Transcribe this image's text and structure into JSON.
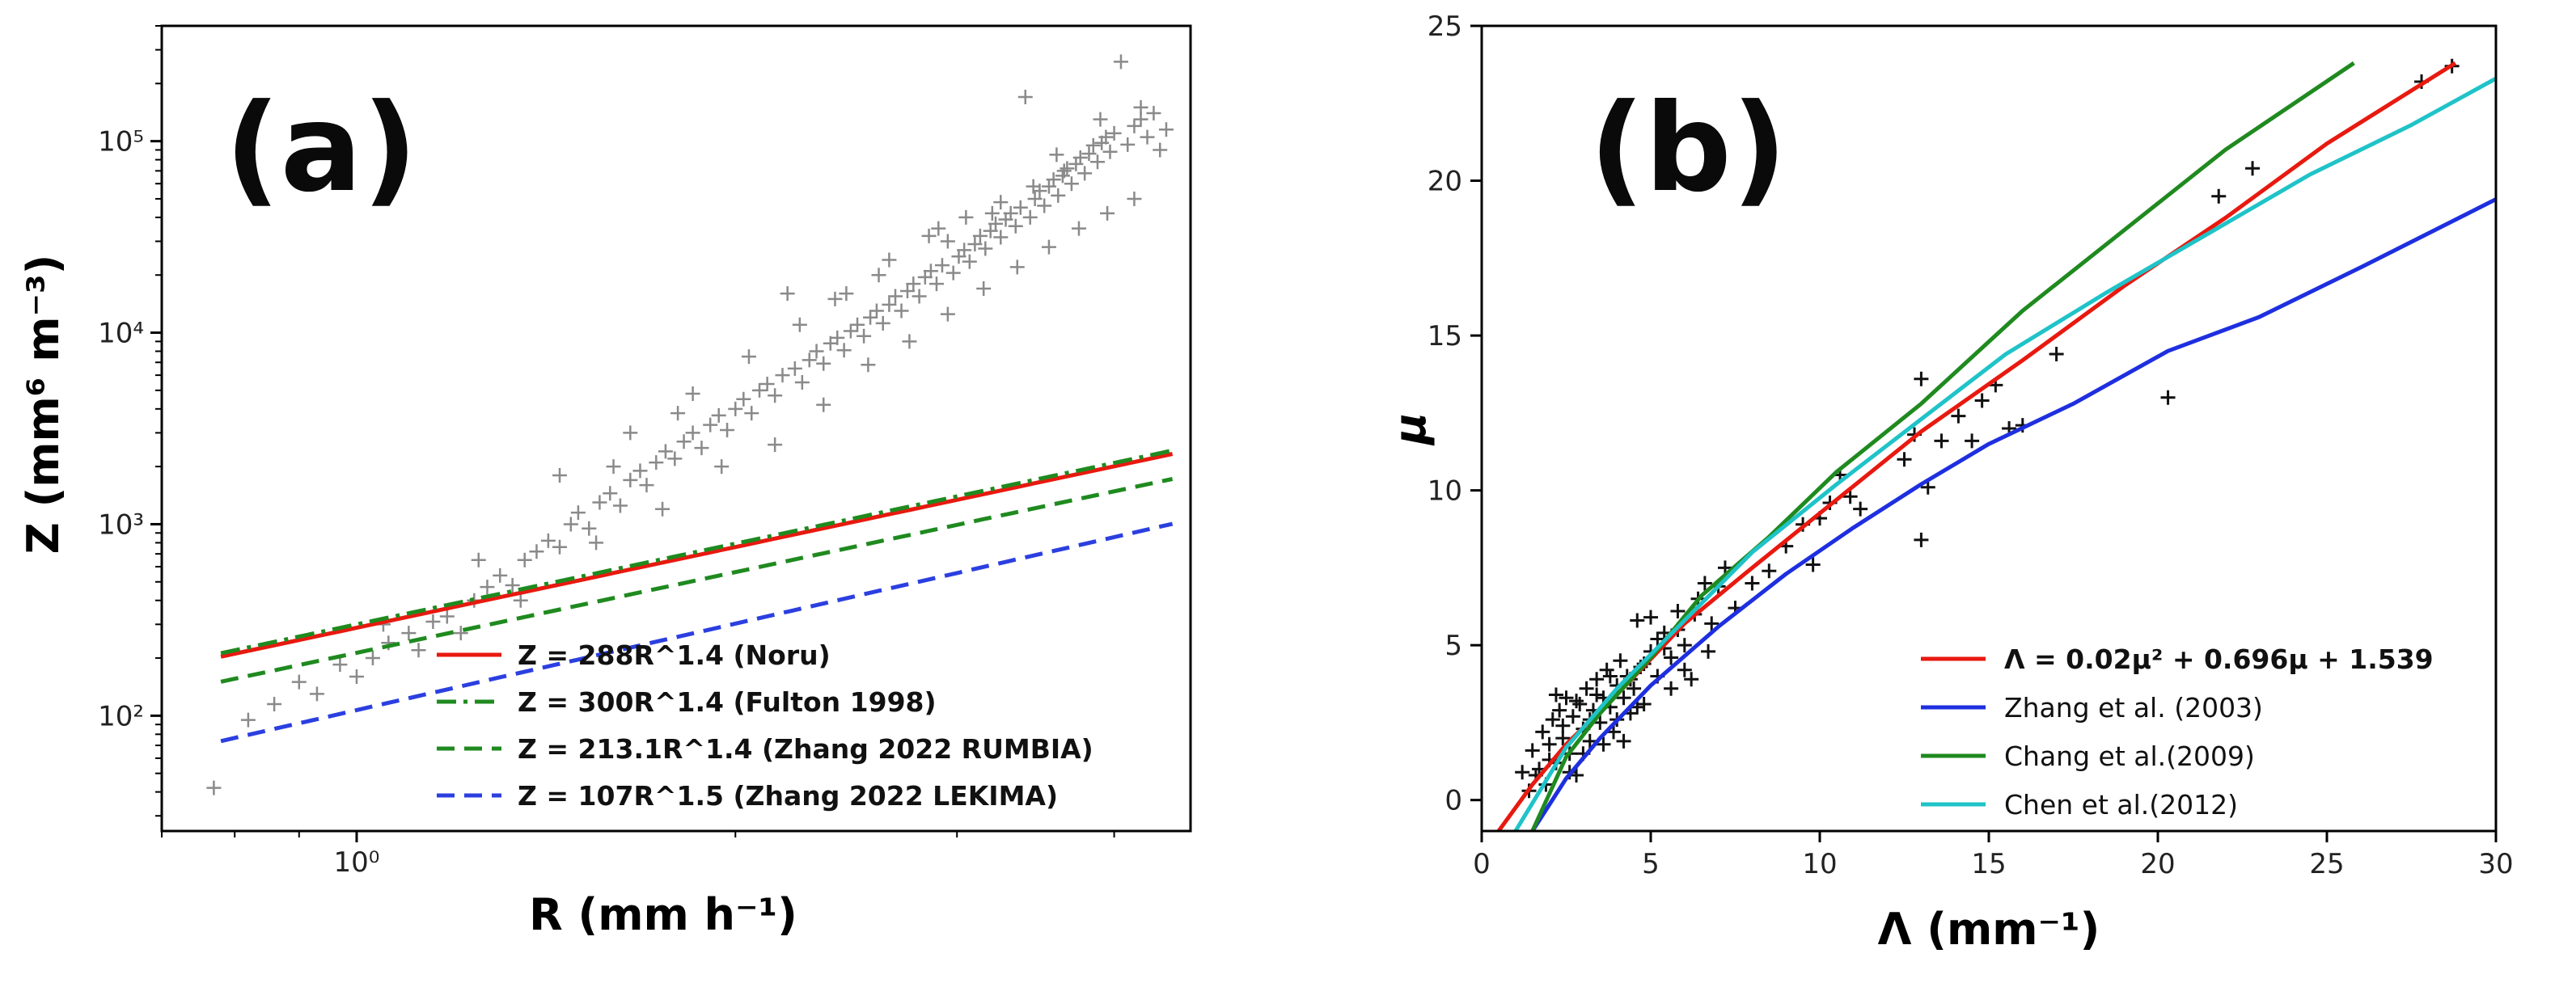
{
  "chart_data": [
    {
      "type": "scatter",
      "panel_label": "(a)",
      "xlabel": "R (mm h⁻¹)",
      "ylabel": "Z (mm⁶ m⁻³)",
      "xscale": "log",
      "yscale": "log",
      "xlim": [
        0.7,
        4.6
      ],
      "ylim": [
        25,
        400000
      ],
      "xticks": [
        {
          "value": 1,
          "label": "10⁰"
        }
      ],
      "yticks": [
        {
          "value": 100,
          "label": "10²"
        },
        {
          "value": 1000,
          "label": "10³"
        },
        {
          "value": 10000,
          "label": "10⁴"
        },
        {
          "value": 100000,
          "label": "10⁵"
        }
      ],
      "legend_position": "lower-right",
      "series": [
        {
          "name": "Z = 288R^1.4 (Noru)",
          "color": "#e8190f",
          "dash": "solid",
          "a": 288,
          "b": 1.4,
          "r_range": [
            0.78,
            4.45
          ]
        },
        {
          "name": "Z = 300R^1.4 (Fulton 1998)",
          "color": "#1f8a1f",
          "dash": "dashdot",
          "a": 300,
          "b": 1.4,
          "r_range": [
            0.78,
            4.45
          ]
        },
        {
          "name": "Z = 213.1R^1.4 (Zhang 2022 RUMBIA)",
          "color": "#1f8a1f",
          "dash": "dashed",
          "a": 213.1,
          "b": 1.4,
          "r_range": [
            0.78,
            4.45
          ]
        },
        {
          "name": "Z = 107R^1.5 (Zhang 2022 LEKIMA)",
          "color": "#2b3fe0",
          "dash": "dashed",
          "a": 107,
          "b": 1.5,
          "r_range": [
            0.78,
            4.45
          ]
        }
      ],
      "points": [
        [
          0.77,
          42
        ],
        [
          0.82,
          95
        ],
        [
          0.86,
          115
        ],
        [
          0.9,
          150
        ],
        [
          0.93,
          130
        ],
        [
          0.97,
          185
        ],
        [
          1.0,
          160
        ],
        [
          1.03,
          200
        ],
        [
          1.06,
          240
        ],
        [
          1.1,
          270
        ],
        [
          1.12,
          220
        ],
        [
          1.15,
          310
        ],
        [
          1.18,
          330
        ],
        [
          1.21,
          270
        ],
        [
          1.24,
          400
        ],
        [
          1.27,
          470
        ],
        [
          1.3,
          540
        ],
        [
          1.33,
          480
        ],
        [
          1.36,
          650
        ],
        [
          1.39,
          720
        ],
        [
          1.42,
          820
        ],
        [
          1.45,
          760
        ],
        [
          1.48,
          1000
        ],
        [
          1.5,
          1150
        ],
        [
          1.53,
          950
        ],
        [
          1.56,
          1300
        ],
        [
          1.59,
          1450
        ],
        [
          1.62,
          1250
        ],
        [
          1.65,
          1700
        ],
        [
          1.68,
          1900
        ],
        [
          1.7,
          1600
        ],
        [
          1.73,
          2100
        ],
        [
          1.76,
          2400
        ],
        [
          1.79,
          2200
        ],
        [
          1.82,
          2700
        ],
        [
          1.85,
          3000
        ],
        [
          1.88,
          2500
        ],
        [
          1.91,
          3300
        ],
        [
          1.94,
          3700
        ],
        [
          1.97,
          3100
        ],
        [
          2.0,
          4000
        ],
        [
          2.03,
          4500
        ],
        [
          2.06,
          3800
        ],
        [
          2.09,
          5000
        ],
        [
          2.12,
          5400
        ],
        [
          2.15,
          4700
        ],
        [
          2.18,
          6000
        ],
        [
          2.2,
          16000
        ],
        [
          2.23,
          6500
        ],
        [
          2.26,
          5500
        ],
        [
          2.29,
          7200
        ],
        [
          2.32,
          8000
        ],
        [
          2.35,
          6900
        ],
        [
          2.38,
          8800
        ],
        [
          2.41,
          9400
        ],
        [
          2.44,
          8100
        ],
        [
          2.47,
          10200
        ],
        [
          2.5,
          11000
        ],
        [
          2.53,
          9600
        ],
        [
          2.56,
          12000
        ],
        [
          2.59,
          13000
        ],
        [
          2.62,
          11200
        ],
        [
          2.65,
          14000
        ],
        [
          2.68,
          15500
        ],
        [
          2.71,
          13000
        ],
        [
          2.74,
          16500
        ],
        [
          2.77,
          18000
        ],
        [
          2.8,
          15500
        ],
        [
          2.83,
          19500
        ],
        [
          2.86,
          21000
        ],
        [
          2.89,
          18000
        ],
        [
          2.92,
          22500
        ],
        [
          2.95,
          30000
        ],
        [
          2.98,
          20500
        ],
        [
          3.01,
          25000
        ],
        [
          3.04,
          27000
        ],
        [
          3.07,
          23500
        ],
        [
          3.1,
          29000
        ],
        [
          3.13,
          32000
        ],
        [
          3.16,
          27500
        ],
        [
          3.19,
          34000
        ],
        [
          3.22,
          37000
        ],
        [
          3.25,
          31500
        ],
        [
          3.28,
          39000
        ],
        [
          3.31,
          42000
        ],
        [
          3.34,
          36000
        ],
        [
          3.37,
          45000
        ],
        [
          3.4,
          170000
        ],
        [
          3.43,
          40000
        ],
        [
          3.46,
          50000
        ],
        [
          3.49,
          55000
        ],
        [
          3.52,
          46000
        ],
        [
          3.55,
          58000
        ],
        [
          3.58,
          63000
        ],
        [
          3.61,
          52000
        ],
        [
          3.64,
          66000
        ],
        [
          3.67,
          72000
        ],
        [
          3.7,
          60000
        ],
        [
          3.73,
          76000
        ],
        [
          3.76,
          82000
        ],
        [
          3.79,
          68000
        ],
        [
          3.82,
          86000
        ],
        [
          3.85,
          95000
        ],
        [
          3.88,
          78000
        ],
        [
          3.91,
          98000
        ],
        [
          3.94,
          105000
        ],
        [
          3.97,
          88000
        ],
        [
          4.0,
          110000
        ],
        [
          4.05,
          260000
        ],
        [
          4.1,
          96000
        ],
        [
          4.15,
          120000
        ],
        [
          4.2,
          130000
        ],
        [
          4.25,
          105000
        ],
        [
          4.3,
          140000
        ],
        [
          4.35,
          90000
        ],
        [
          4.4,
          115000
        ],
        [
          1.35,
          400
        ],
        [
          1.55,
          800
        ],
        [
          1.75,
          1200
        ],
        [
          1.95,
          2000
        ],
        [
          2.15,
          2600
        ],
        [
          2.35,
          4200
        ],
        [
          2.55,
          6800
        ],
        [
          2.75,
          9000
        ],
        [
          2.95,
          12500
        ],
        [
          3.15,
          17000
        ],
        [
          3.35,
          22000
        ],
        [
          3.55,
          28000
        ],
        [
          3.75,
          35000
        ],
        [
          3.95,
          42000
        ],
        [
          4.15,
          50000
        ],
        [
          1.45,
          1800
        ],
        [
          1.65,
          3000
        ],
        [
          1.85,
          4800
        ],
        [
          2.05,
          7500
        ],
        [
          2.25,
          11000
        ],
        [
          2.45,
          16000
        ],
        [
          2.65,
          24000
        ],
        [
          2.85,
          32000
        ],
        [
          3.05,
          40000
        ],
        [
          3.25,
          48000
        ],
        [
          3.45,
          58000
        ],
        [
          3.65,
          70000
        ],
        [
          1.05,
          300
        ],
        [
          1.25,
          650
        ],
        [
          1.6,
          2000
        ],
        [
          1.8,
          3800
        ],
        [
          2.4,
          15000
        ],
        [
          2.6,
          20000
        ],
        [
          2.9,
          35000
        ],
        [
          3.2,
          42000
        ],
        [
          3.6,
          85000
        ],
        [
          3.9,
          130000
        ],
        [
          4.2,
          150000
        ]
      ]
    },
    {
      "type": "scatter",
      "panel_label": "(b)",
      "xlabel": "Λ (mm⁻¹)",
      "ylabel": "μ",
      "xlim": [
        0,
        30
      ],
      "ylim": [
        -1,
        25
      ],
      "xticks": [
        0,
        5,
        10,
        15,
        20,
        25,
        30
      ],
      "yticks": [
        0,
        5,
        10,
        15,
        20,
        25
      ],
      "legend_position": "lower-right",
      "series": [
        {
          "name": "Λ = 0.02μ² + 0.696μ + 1.539",
          "color": "#e8190f",
          "bold": true,
          "x": [
            0.5,
            1.5,
            2.5,
            4.0,
            6.0,
            8.0,
            10.5,
            13.0,
            16.0,
            19.0,
            22.0,
            25.0,
            28.8
          ],
          "y": [
            -1.0,
            0.5,
            1.8,
            3.4,
            5.7,
            7.5,
            9.7,
            11.9,
            14.2,
            16.6,
            18.8,
            21.2,
            23.8
          ]
        },
        {
          "name": "Zhang et al. (2003)",
          "color": "#1e2fe0",
          "bold": false,
          "x": [
            1.5,
            2.5,
            3.5,
            5.0,
            7.0,
            9.0,
            11.0,
            13.0,
            15.0,
            17.5,
            20.3,
            23.0,
            26.0,
            30.0
          ],
          "y": [
            -1.0,
            0.7,
            2.0,
            3.7,
            5.6,
            7.3,
            8.8,
            10.2,
            11.5,
            12.8,
            14.5,
            15.6,
            17.2,
            19.4
          ]
        },
        {
          "name": "Chang et al.(2009)",
          "color": "#1f8a1f",
          "bold": false,
          "x": [
            1.5,
            2.5,
            3.5,
            5.0,
            6.5,
            8.5,
            10.5,
            13.0,
            16.0,
            19.0,
            22.0,
            25.8
          ],
          "y": [
            -1.0,
            1.4,
            2.8,
            4.6,
            6.6,
            8.5,
            10.6,
            12.8,
            15.8,
            18.4,
            21.0,
            23.8
          ]
        },
        {
          "name": "Chen et al.(2012)",
          "color": "#1fc3c8",
          "bold": false,
          "x": [
            1.0,
            2.5,
            4.0,
            6.0,
            8.0,
            10.5,
            13.0,
            15.5,
            18.5,
            21.5,
            24.5,
            27.5,
            30.0
          ],
          "y": [
            -1.0,
            1.7,
            3.6,
            5.8,
            8.0,
            10.2,
            12.3,
            14.4,
            16.4,
            18.3,
            20.2,
            21.8,
            23.3
          ]
        }
      ],
      "points": [
        [
          1.2,
          0.9
        ],
        [
          1.4,
          0.3
        ],
        [
          1.5,
          1.6
        ],
        [
          1.7,
          1.0
        ],
        [
          1.8,
          2.2
        ],
        [
          1.9,
          0.5
        ],
        [
          2.0,
          1.8
        ],
        [
          2.1,
          2.6
        ],
        [
          2.2,
          1.2
        ],
        [
          2.3,
          2.9
        ],
        [
          2.4,
          2.0
        ],
        [
          2.5,
          3.3
        ],
        [
          2.6,
          1.5
        ],
        [
          2.7,
          2.7
        ],
        [
          2.8,
          0.8
        ],
        [
          2.9,
          3.1
        ],
        [
          3.0,
          2.3
        ],
        [
          3.1,
          3.6
        ],
        [
          3.2,
          1.9
        ],
        [
          3.3,
          2.9
        ],
        [
          3.4,
          3.9
        ],
        [
          3.5,
          2.5
        ],
        [
          3.6,
          3.3
        ],
        [
          3.7,
          4.2
        ],
        [
          3.8,
          3.0
        ],
        [
          3.9,
          2.2
        ],
        [
          4.0,
          3.7
        ],
        [
          4.1,
          4.5
        ],
        [
          4.2,
          3.3
        ],
        [
          4.3,
          4.0
        ],
        [
          4.4,
          2.8
        ],
        [
          4.5,
          3.6
        ],
        [
          4.6,
          5.8
        ],
        [
          4.7,
          4.3
        ],
        [
          4.8,
          3.1
        ],
        [
          5.0,
          4.8
        ],
        [
          5.2,
          4.0
        ],
        [
          5.4,
          5.4
        ],
        [
          5.6,
          4.6
        ],
        [
          5.8,
          6.1
        ],
        [
          6.0,
          5.0
        ],
        [
          6.2,
          3.9
        ],
        [
          6.4,
          6.5
        ],
        [
          6.6,
          7.0
        ],
        [
          6.8,
          5.7
        ],
        [
          7.0,
          6.9
        ],
        [
          7.2,
          7.5
        ],
        [
          7.5,
          6.2
        ],
        [
          8.0,
          7.0
        ],
        [
          8.5,
          7.4
        ],
        [
          9.0,
          8.2
        ],
        [
          9.5,
          8.9
        ],
        [
          9.8,
          7.6
        ],
        [
          10.0,
          9.1
        ],
        [
          10.3,
          9.6
        ],
        [
          10.6,
          10.5
        ],
        [
          10.9,
          9.8
        ],
        [
          11.2,
          9.4
        ],
        [
          12.5,
          11.0
        ],
        [
          12.8,
          11.8
        ],
        [
          13.0,
          13.6
        ],
        [
          13.0,
          8.4
        ],
        [
          13.2,
          10.1
        ],
        [
          13.6,
          11.6
        ],
        [
          14.1,
          12.4
        ],
        [
          14.5,
          11.6
        ],
        [
          14.8,
          12.9
        ],
        [
          15.2,
          13.4
        ],
        [
          15.6,
          12.0
        ],
        [
          16.0,
          12.1
        ],
        [
          17.0,
          14.4
        ],
        [
          20.3,
          13.0
        ],
        [
          21.8,
          19.5
        ],
        [
          22.8,
          20.4
        ],
        [
          27.8,
          23.2
        ],
        [
          28.7,
          23.7
        ],
        [
          1.6,
          0.8
        ],
        [
          2.0,
          1.3
        ],
        [
          2.4,
          2.4
        ],
        [
          2.8,
          3.2
        ],
        [
          3.2,
          2.6
        ],
        [
          3.6,
          1.8
        ],
        [
          4.0,
          2.6
        ],
        [
          4.4,
          3.9
        ],
        [
          4.8,
          4.4
        ],
        [
          5.2,
          5.2
        ],
        [
          5.6,
          3.6
        ],
        [
          6.0,
          4.2
        ],
        [
          2.2,
          3.4
        ],
        [
          2.6,
          0.9
        ],
        [
          3.0,
          1.5
        ],
        [
          3.4,
          3.4
        ],
        [
          3.8,
          4.0
        ],
        [
          4.2,
          1.9
        ],
        [
          4.6,
          3.0
        ],
        [
          5.0,
          5.9
        ],
        [
          5.4,
          4.9
        ],
        [
          5.8,
          5.5
        ],
        [
          6.3,
          6.0
        ],
        [
          6.7,
          4.8
        ]
      ]
    }
  ]
}
